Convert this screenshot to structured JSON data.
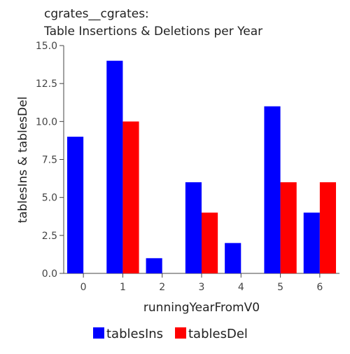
{
  "chart_data": {
    "type": "bar",
    "title_line1": "cgrates__cgrates:",
    "title_line2": "Table Insertions & Deletions per Year",
    "xlabel": "runningYearFromV0",
    "ylabel": "tablesIns & tablesDel",
    "categories": [
      "0",
      "1",
      "2",
      "3",
      "4",
      "5",
      "6"
    ],
    "ylim": [
      0,
      15
    ],
    "yticks": [
      "0.0",
      "2.5",
      "5.0",
      "7.5",
      "10.0",
      "12.5",
      "15.0"
    ],
    "grid": false,
    "legend_position": "bottom",
    "series": [
      {
        "name": "tablesIns",
        "color": "#0000ff",
        "values": [
          9,
          14,
          1,
          6,
          2,
          11,
          4
        ]
      },
      {
        "name": "tablesDel",
        "color": "#ff0000",
        "values": [
          0,
          10,
          0,
          4,
          0,
          6,
          6
        ]
      }
    ]
  }
}
